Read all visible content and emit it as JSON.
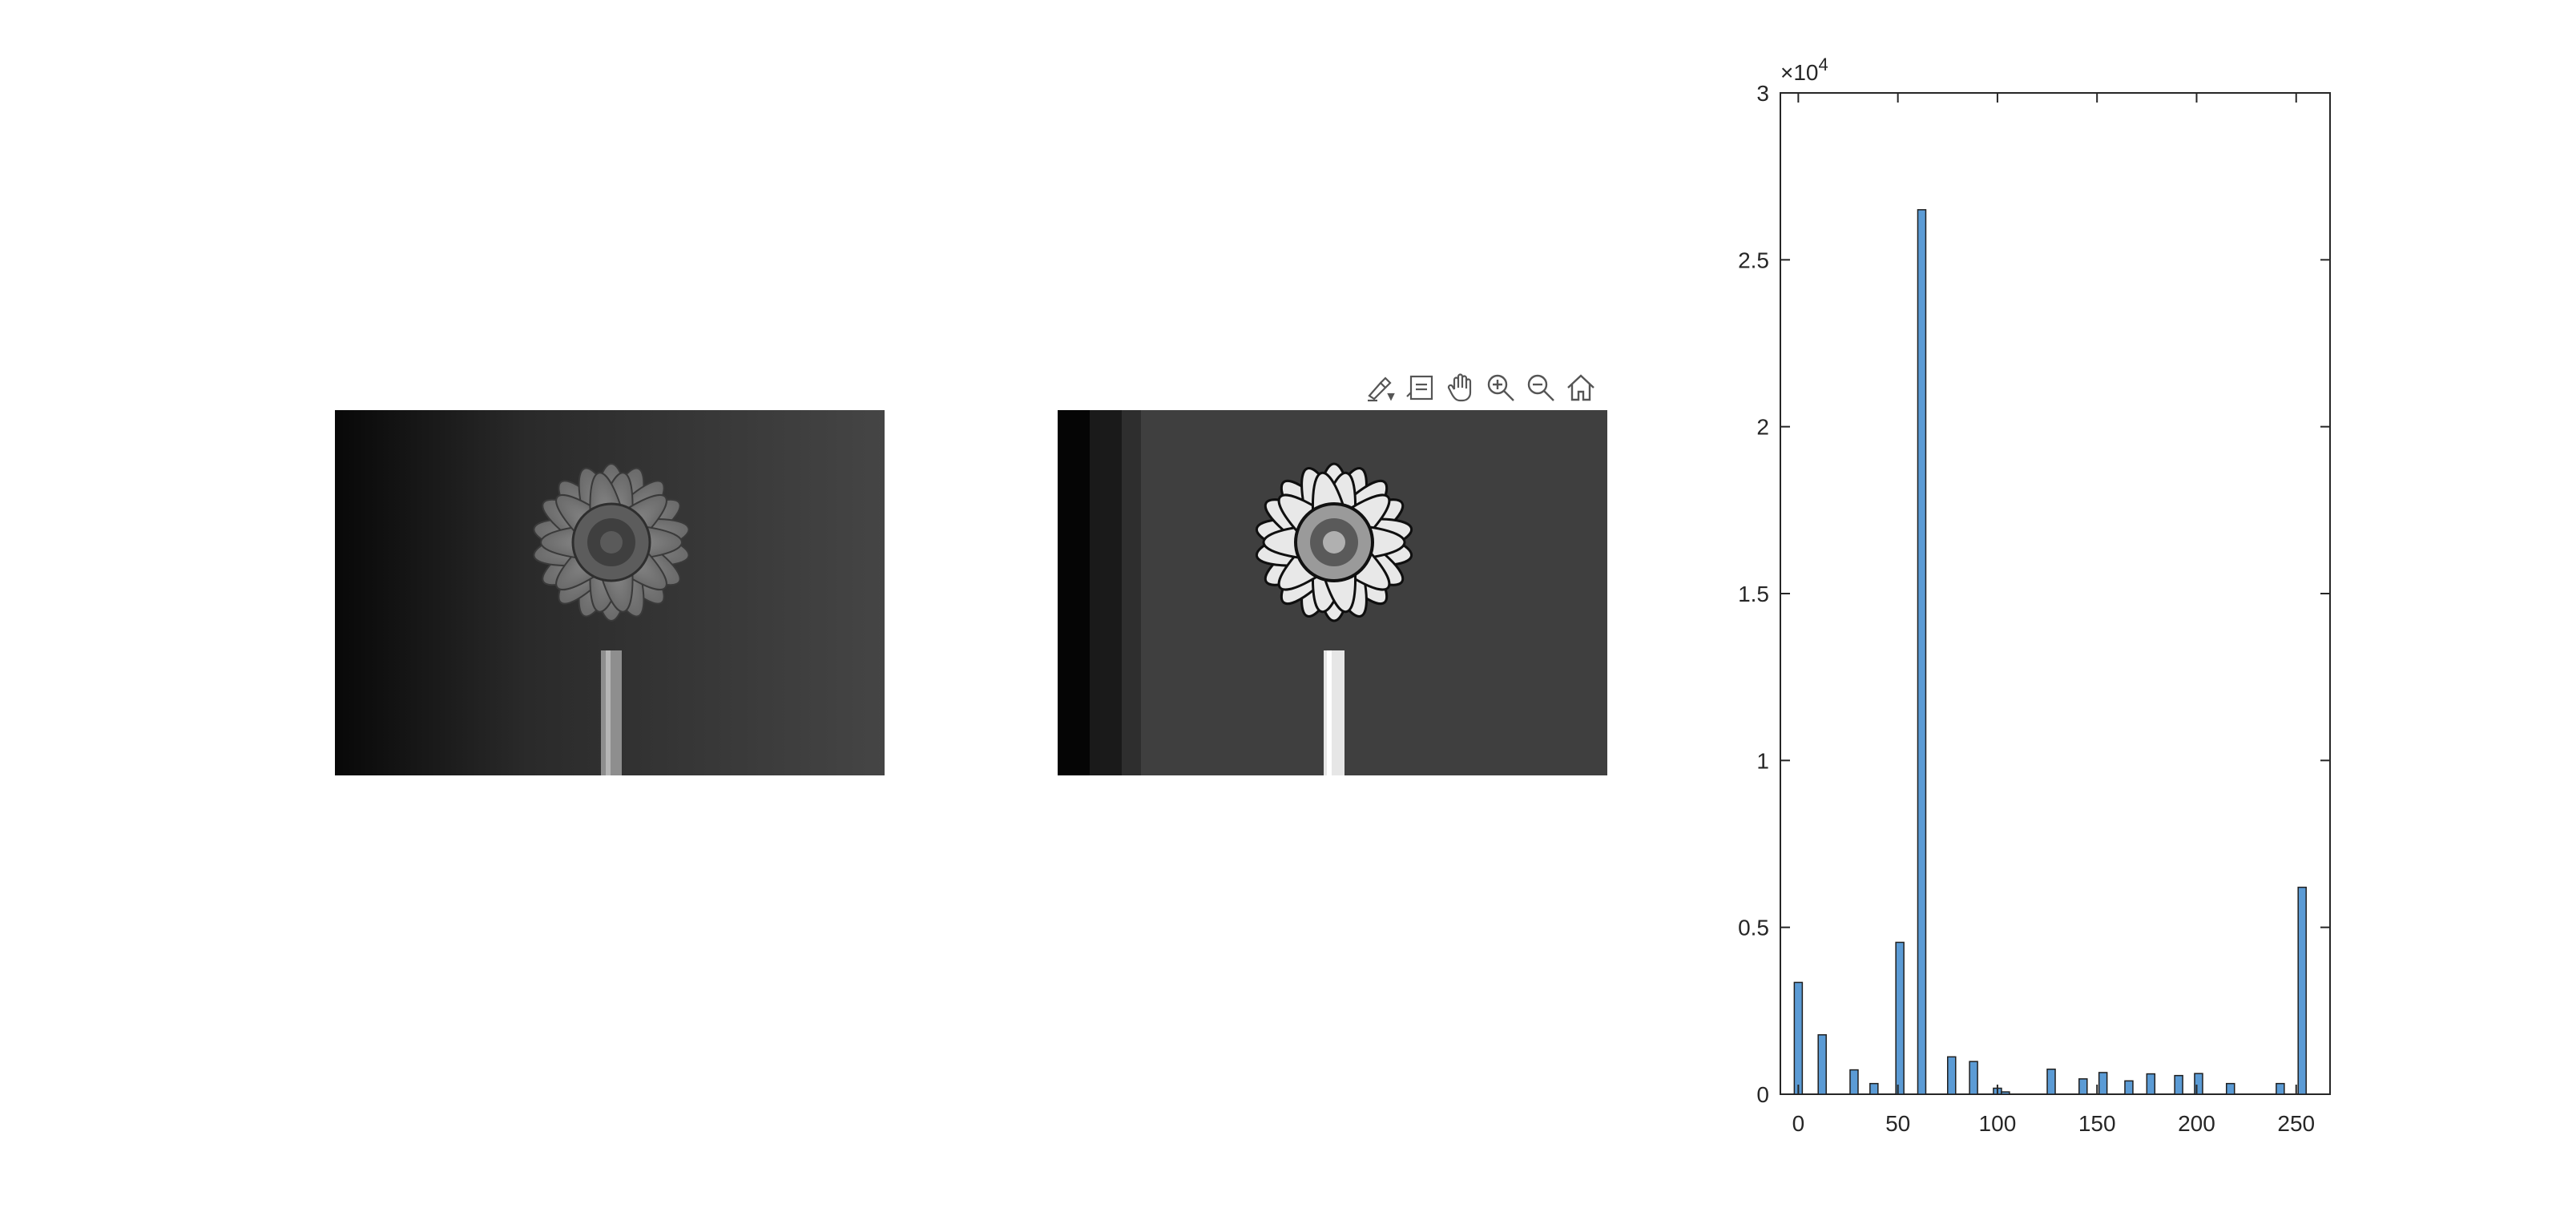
{
  "figure": {
    "panels": [
      {
        "name": "original-grayscale-image",
        "content": "gerbera daisy, grayscale photo"
      },
      {
        "name": "processed-image",
        "content": "gerbera daisy, quantized / high-contrast"
      }
    ],
    "toolbar": {
      "items": [
        {
          "icon": "brush-icon",
          "label": "Brush"
        },
        {
          "icon": "data-tip-icon",
          "label": "Data Tips"
        },
        {
          "icon": "pan-hand-icon",
          "label": "Pan"
        },
        {
          "icon": "zoom-in-icon",
          "label": "Zoom In"
        },
        {
          "icon": "zoom-out-icon",
          "label": "Zoom Out"
        },
        {
          "icon": "home-icon",
          "label": "Restore View"
        }
      ]
    }
  },
  "chart_data": {
    "type": "bar",
    "title": "",
    "xlabel": "",
    "ylabel": "",
    "x": [
      0,
      12,
      28,
      38,
      51,
      62,
      77,
      88,
      100,
      104,
      127,
      143,
      153,
      166,
      177,
      191,
      201,
      217,
      242,
      253
    ],
    "values": [
      3350,
      1780,
      730,
      320,
      4550,
      26500,
      1120,
      980,
      180,
      70,
      750,
      460,
      650,
      400,
      610,
      560,
      620,
      320,
      320,
      6200
    ],
    "xlim": [
      -9,
      267
    ],
    "ylim": [
      0,
      30000
    ],
    "xticks": [
      "0",
      "50",
      "100",
      "150",
      "200",
      "250"
    ],
    "yticks": [
      "0",
      "0.5",
      "1",
      "1.5",
      "2",
      "2.5",
      "3"
    ],
    "exponent_label": "×10",
    "exponent_power": "4",
    "bar_color": "#5b9bd5",
    "grid": false,
    "legend": "none"
  }
}
